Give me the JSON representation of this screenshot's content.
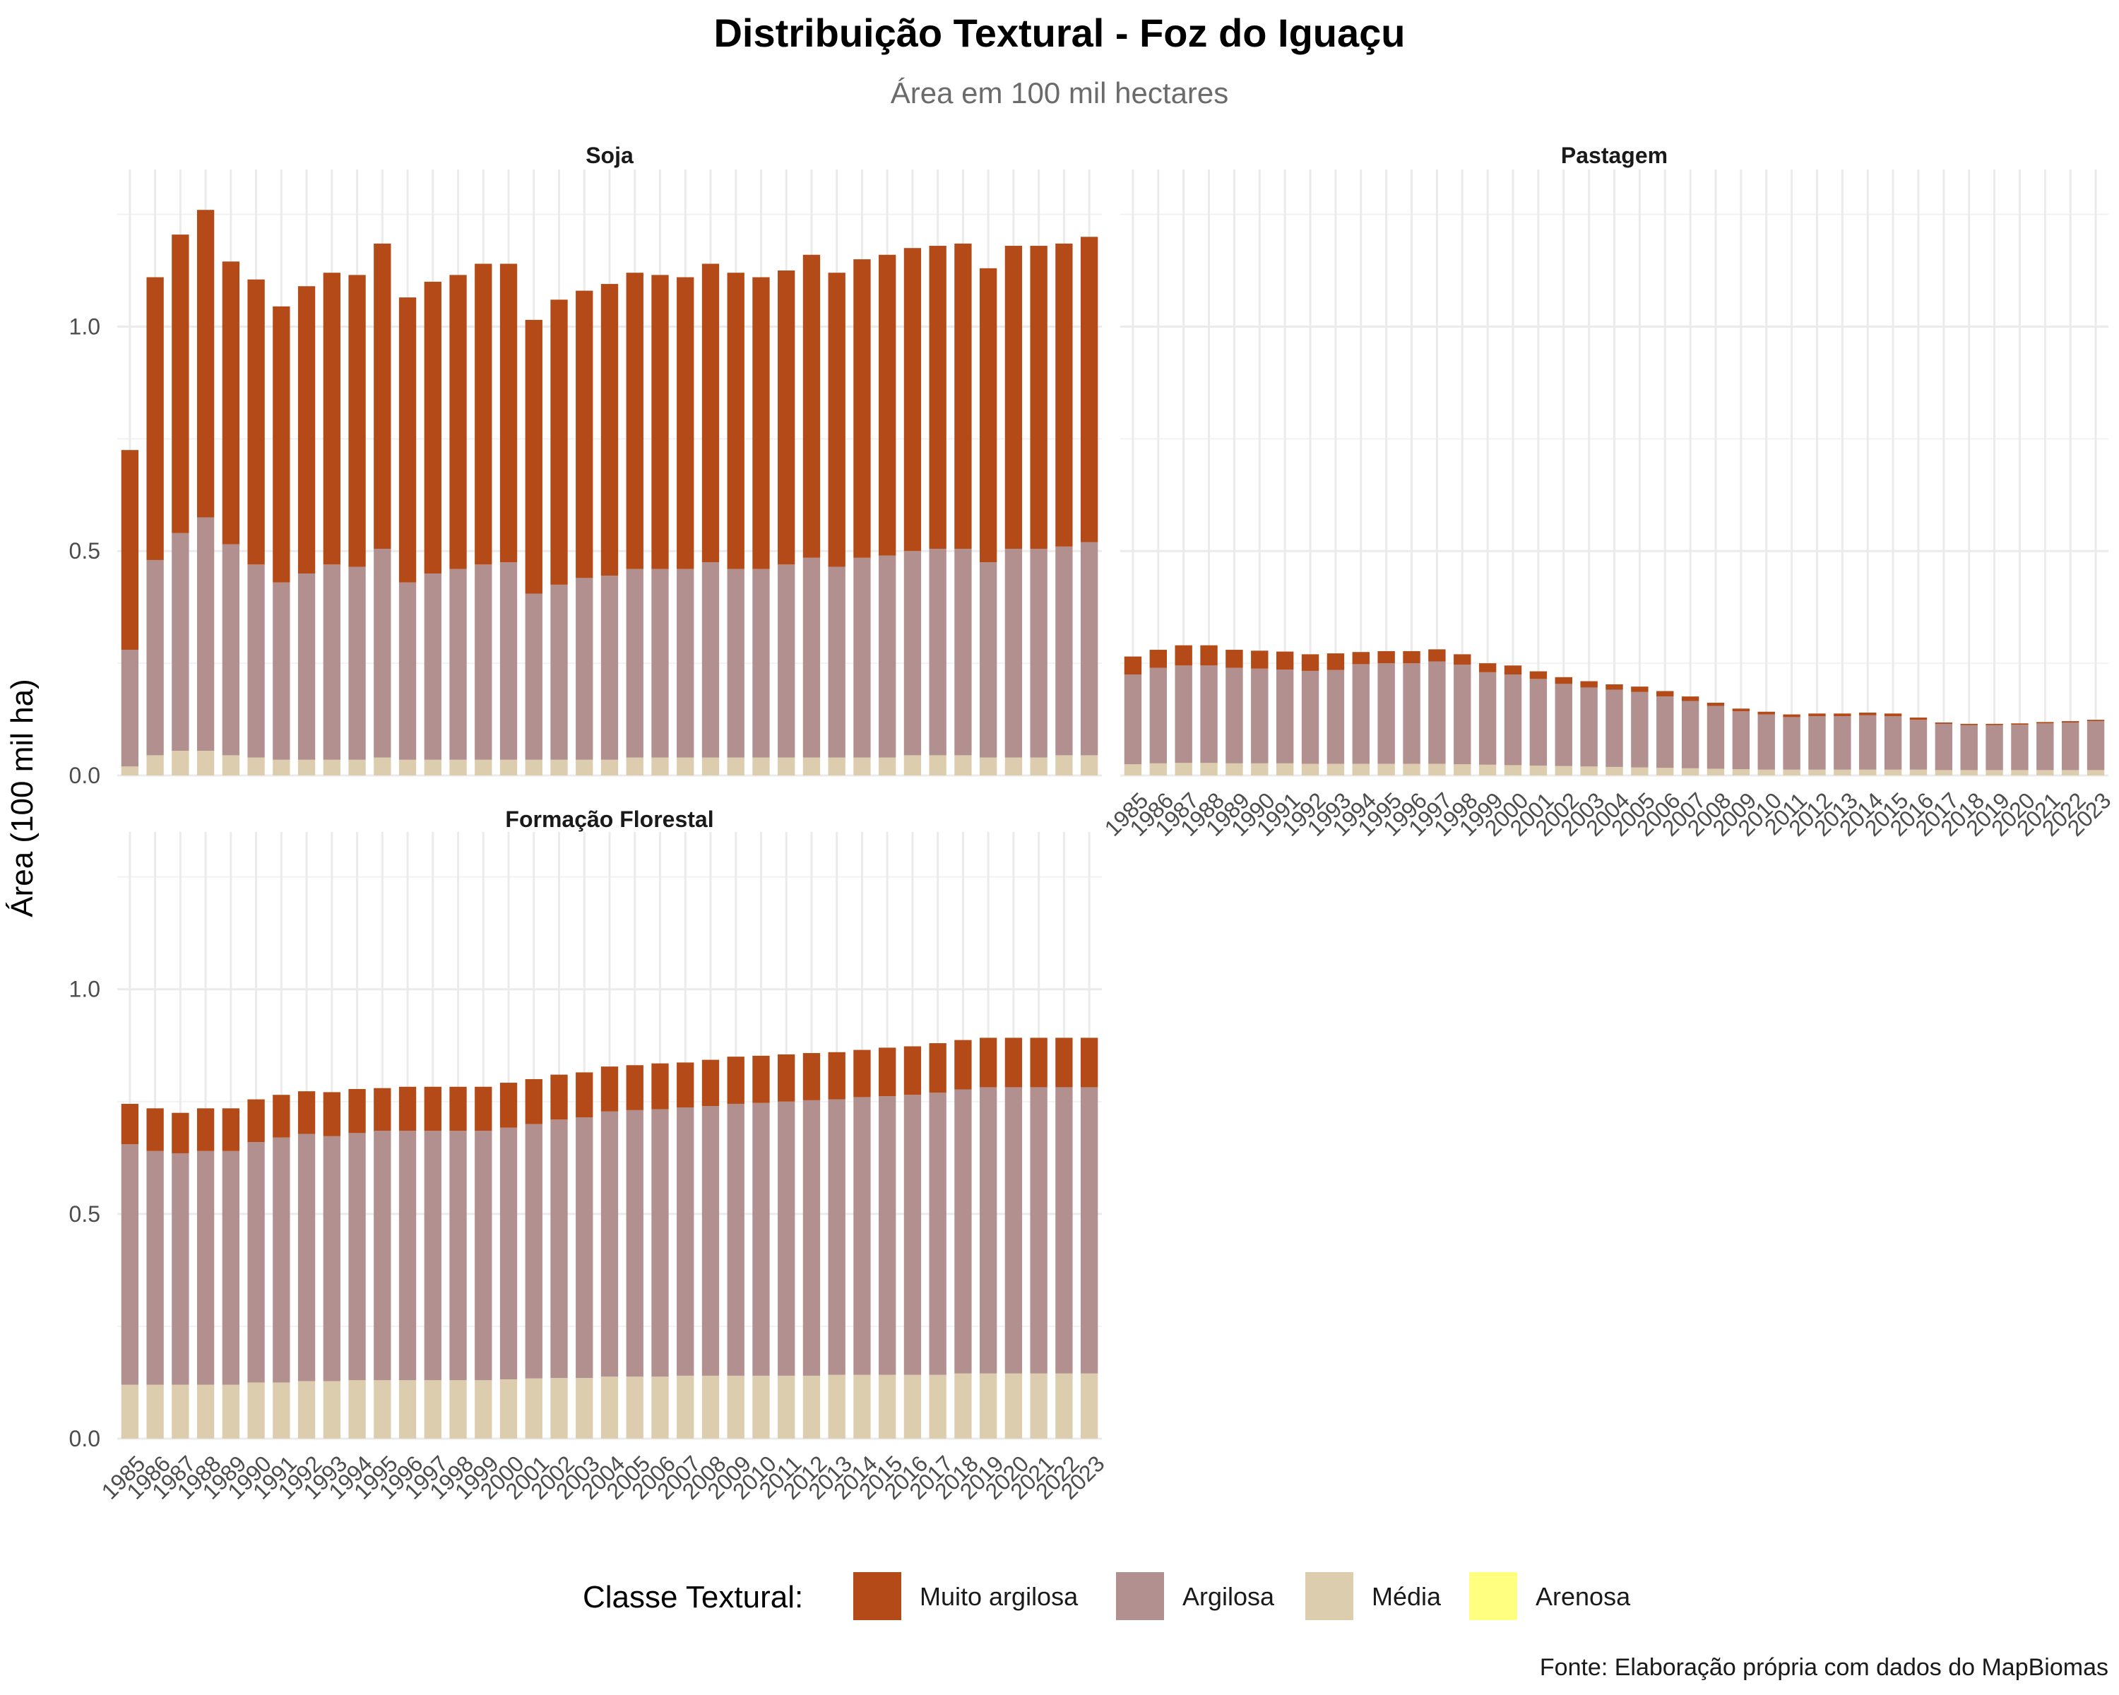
{
  "title": "Distribuição Textural - Foz do Iguaçu",
  "subtitle": "Área em 100 mil hectares",
  "ylabel": "Área (100 mil ha)",
  "caption": "Fonte: Elaboração própria com dados do MapBiomas",
  "legend": {
    "title": "Classe Textural:",
    "items": [
      {
        "label": "Muito argilosa",
        "color": "#B34A17"
      },
      {
        "label": "Argilosa",
        "color": "#B29090"
      },
      {
        "label": "Média",
        "color": "#DDCDAF"
      },
      {
        "label": "Arenosa",
        "color": "#FFFF80"
      }
    ]
  },
  "chart_data": [
    {
      "type": "bar",
      "stacked": true,
      "facet": "Soja",
      "ylim": [
        0,
        1.35
      ],
      "yticks": [
        0.0,
        0.5,
        1.0
      ],
      "grid": true,
      "categories": [
        "1985",
        "1986",
        "1987",
        "1988",
        "1989",
        "1990",
        "1991",
        "1992",
        "1993",
        "1994",
        "1995",
        "1996",
        "1997",
        "1998",
        "1999",
        "2000",
        "2001",
        "2002",
        "2003",
        "2004",
        "2005",
        "2006",
        "2007",
        "2008",
        "2009",
        "2010",
        "2011",
        "2012",
        "2013",
        "2014",
        "2015",
        "2016",
        "2017",
        "2018",
        "2019",
        "2020",
        "2021",
        "2022",
        "2023"
      ],
      "series": [
        {
          "name": "Média",
          "values": [
            0.02,
            0.045,
            0.055,
            0.055,
            0.045,
            0.04,
            0.035,
            0.035,
            0.035,
            0.035,
            0.04,
            0.035,
            0.035,
            0.035,
            0.035,
            0.035,
            0.035,
            0.035,
            0.035,
            0.035,
            0.04,
            0.04,
            0.04,
            0.04,
            0.04,
            0.04,
            0.04,
            0.04,
            0.04,
            0.04,
            0.04,
            0.045,
            0.045,
            0.045,
            0.04,
            0.04,
            0.04,
            0.045,
            0.045
          ]
        },
        {
          "name": "Argilosa",
          "values": [
            0.26,
            0.435,
            0.485,
            0.52,
            0.47,
            0.43,
            0.395,
            0.415,
            0.435,
            0.43,
            0.465,
            0.395,
            0.415,
            0.425,
            0.435,
            0.44,
            0.37,
            0.39,
            0.405,
            0.41,
            0.42,
            0.42,
            0.42,
            0.435,
            0.42,
            0.42,
            0.43,
            0.445,
            0.425,
            0.445,
            0.45,
            0.455,
            0.46,
            0.46,
            0.435,
            0.465,
            0.465,
            0.465,
            0.475
          ]
        },
        {
          "name": "Muito argilosa",
          "values": [
            0.445,
            0.63,
            0.665,
            0.685,
            0.63,
            0.635,
            0.615,
            0.64,
            0.65,
            0.65,
            0.68,
            0.635,
            0.65,
            0.655,
            0.67,
            0.665,
            0.61,
            0.635,
            0.64,
            0.65,
            0.66,
            0.655,
            0.65,
            0.665,
            0.66,
            0.65,
            0.655,
            0.675,
            0.655,
            0.665,
            0.67,
            0.675,
            0.675,
            0.68,
            0.655,
            0.675,
            0.675,
            0.675,
            0.68
          ]
        },
        {
          "name": "Arenosa",
          "values": [
            0,
            0,
            0,
            0,
            0,
            0,
            0,
            0,
            0,
            0,
            0,
            0,
            0,
            0,
            0,
            0,
            0,
            0,
            0,
            0,
            0,
            0,
            0,
            0,
            0,
            0,
            0,
            0,
            0,
            0,
            0,
            0,
            0,
            0,
            0,
            0,
            0,
            0,
            0
          ]
        }
      ]
    },
    {
      "type": "bar",
      "stacked": true,
      "facet": "Pastagem",
      "ylim": [
        0,
        1.35
      ],
      "yticks": [
        0.0,
        0.5,
        1.0
      ],
      "grid": true,
      "categories": [
        "1985",
        "1986",
        "1987",
        "1988",
        "1989",
        "1990",
        "1991",
        "1992",
        "1993",
        "1994",
        "1995",
        "1996",
        "1997",
        "1998",
        "1999",
        "2000",
        "2001",
        "2002",
        "2003",
        "2004",
        "2005",
        "2006",
        "2007",
        "2008",
        "2009",
        "2010",
        "2011",
        "2012",
        "2013",
        "2014",
        "2015",
        "2016",
        "2017",
        "2018",
        "2019",
        "2020",
        "2021",
        "2022",
        "2023"
      ],
      "series": [
        {
          "name": "Média",
          "values": [
            0.025,
            0.027,
            0.028,
            0.028,
            0.027,
            0.027,
            0.027,
            0.026,
            0.026,
            0.026,
            0.026,
            0.026,
            0.026,
            0.025,
            0.024,
            0.023,
            0.022,
            0.021,
            0.02,
            0.019,
            0.018,
            0.017,
            0.016,
            0.015,
            0.014,
            0.013,
            0.013,
            0.013,
            0.013,
            0.013,
            0.013,
            0.013,
            0.012,
            0.012,
            0.012,
            0.012,
            0.012,
            0.012,
            0.012
          ]
        },
        {
          "name": "Argilosa",
          "values": [
            0.2,
            0.213,
            0.217,
            0.217,
            0.213,
            0.211,
            0.209,
            0.207,
            0.209,
            0.222,
            0.224,
            0.224,
            0.228,
            0.222,
            0.206,
            0.202,
            0.193,
            0.183,
            0.176,
            0.172,
            0.168,
            0.159,
            0.15,
            0.14,
            0.129,
            0.123,
            0.117,
            0.119,
            0.119,
            0.121,
            0.119,
            0.111,
            0.103,
            0.1,
            0.1,
            0.101,
            0.104,
            0.106,
            0.109
          ]
        },
        {
          "name": "Muito argilosa",
          "values": [
            0.04,
            0.04,
            0.045,
            0.045,
            0.04,
            0.04,
            0.04,
            0.037,
            0.037,
            0.027,
            0.027,
            0.027,
            0.027,
            0.023,
            0.02,
            0.02,
            0.017,
            0.015,
            0.014,
            0.012,
            0.012,
            0.012,
            0.01,
            0.007,
            0.006,
            0.006,
            0.006,
            0.006,
            0.006,
            0.006,
            0.006,
            0.005,
            0.003,
            0.003,
            0.003,
            0.003,
            0.003,
            0.003,
            0.003
          ]
        },
        {
          "name": "Arenosa",
          "values": [
            0,
            0,
            0,
            0,
            0,
            0,
            0,
            0,
            0,
            0,
            0,
            0,
            0,
            0,
            0,
            0,
            0,
            0,
            0,
            0,
            0,
            0,
            0,
            0,
            0,
            0,
            0,
            0,
            0,
            0,
            0,
            0,
            0,
            0,
            0,
            0,
            0,
            0,
            0
          ]
        }
      ]
    },
    {
      "type": "bar",
      "stacked": true,
      "facet": "Formação Florestal",
      "ylim": [
        0,
        1.35
      ],
      "yticks": [
        0.0,
        0.5,
        1.0
      ],
      "grid": true,
      "categories": [
        "1985",
        "1986",
        "1987",
        "1988",
        "1989",
        "1990",
        "1991",
        "1992",
        "1993",
        "1994",
        "1995",
        "1996",
        "1997",
        "1998",
        "1999",
        "2000",
        "2001",
        "2002",
        "2003",
        "2004",
        "2005",
        "2006",
        "2007",
        "2008",
        "2009",
        "2010",
        "2011",
        "2012",
        "2013",
        "2014",
        "2015",
        "2016",
        "2017",
        "2018",
        "2019",
        "2020",
        "2021",
        "2022",
        "2023"
      ],
      "series": [
        {
          "name": "Média",
          "values": [
            0.12,
            0.12,
            0.12,
            0.12,
            0.12,
            0.125,
            0.125,
            0.128,
            0.128,
            0.13,
            0.13,
            0.13,
            0.13,
            0.13,
            0.13,
            0.132,
            0.134,
            0.135,
            0.135,
            0.138,
            0.138,
            0.138,
            0.14,
            0.14,
            0.14,
            0.14,
            0.14,
            0.14,
            0.142,
            0.142,
            0.142,
            0.142,
            0.142,
            0.145,
            0.145,
            0.145,
            0.145,
            0.145,
            0.145
          ]
        },
        {
          "name": "Argilosa",
          "values": [
            0.535,
            0.52,
            0.515,
            0.52,
            0.52,
            0.535,
            0.545,
            0.55,
            0.545,
            0.55,
            0.555,
            0.555,
            0.555,
            0.555,
            0.555,
            0.56,
            0.566,
            0.575,
            0.58,
            0.59,
            0.593,
            0.595,
            0.597,
            0.6,
            0.605,
            0.607,
            0.61,
            0.613,
            0.613,
            0.618,
            0.62,
            0.623,
            0.628,
            0.632,
            0.637,
            0.637,
            0.637,
            0.637,
            0.637
          ]
        },
        {
          "name": "Muito argilosa",
          "values": [
            0.09,
            0.095,
            0.09,
            0.095,
            0.095,
            0.095,
            0.095,
            0.095,
            0.098,
            0.098,
            0.095,
            0.098,
            0.098,
            0.098,
            0.098,
            0.1,
            0.1,
            0.1,
            0.1,
            0.1,
            0.1,
            0.102,
            0.1,
            0.103,
            0.105,
            0.105,
            0.105,
            0.105,
            0.105,
            0.105,
            0.108,
            0.108,
            0.11,
            0.11,
            0.11,
            0.11,
            0.11,
            0.11,
            0.11
          ]
        },
        {
          "name": "Arenosa",
          "values": [
            0,
            0,
            0,
            0,
            0,
            0,
            0,
            0,
            0,
            0,
            0,
            0,
            0,
            0,
            0,
            0,
            0,
            0,
            0,
            0,
            0,
            0,
            0,
            0,
            0,
            0,
            0,
            0,
            0,
            0,
            0,
            0,
            0,
            0,
            0,
            0,
            0,
            0,
            0
          ]
        }
      ]
    }
  ]
}
